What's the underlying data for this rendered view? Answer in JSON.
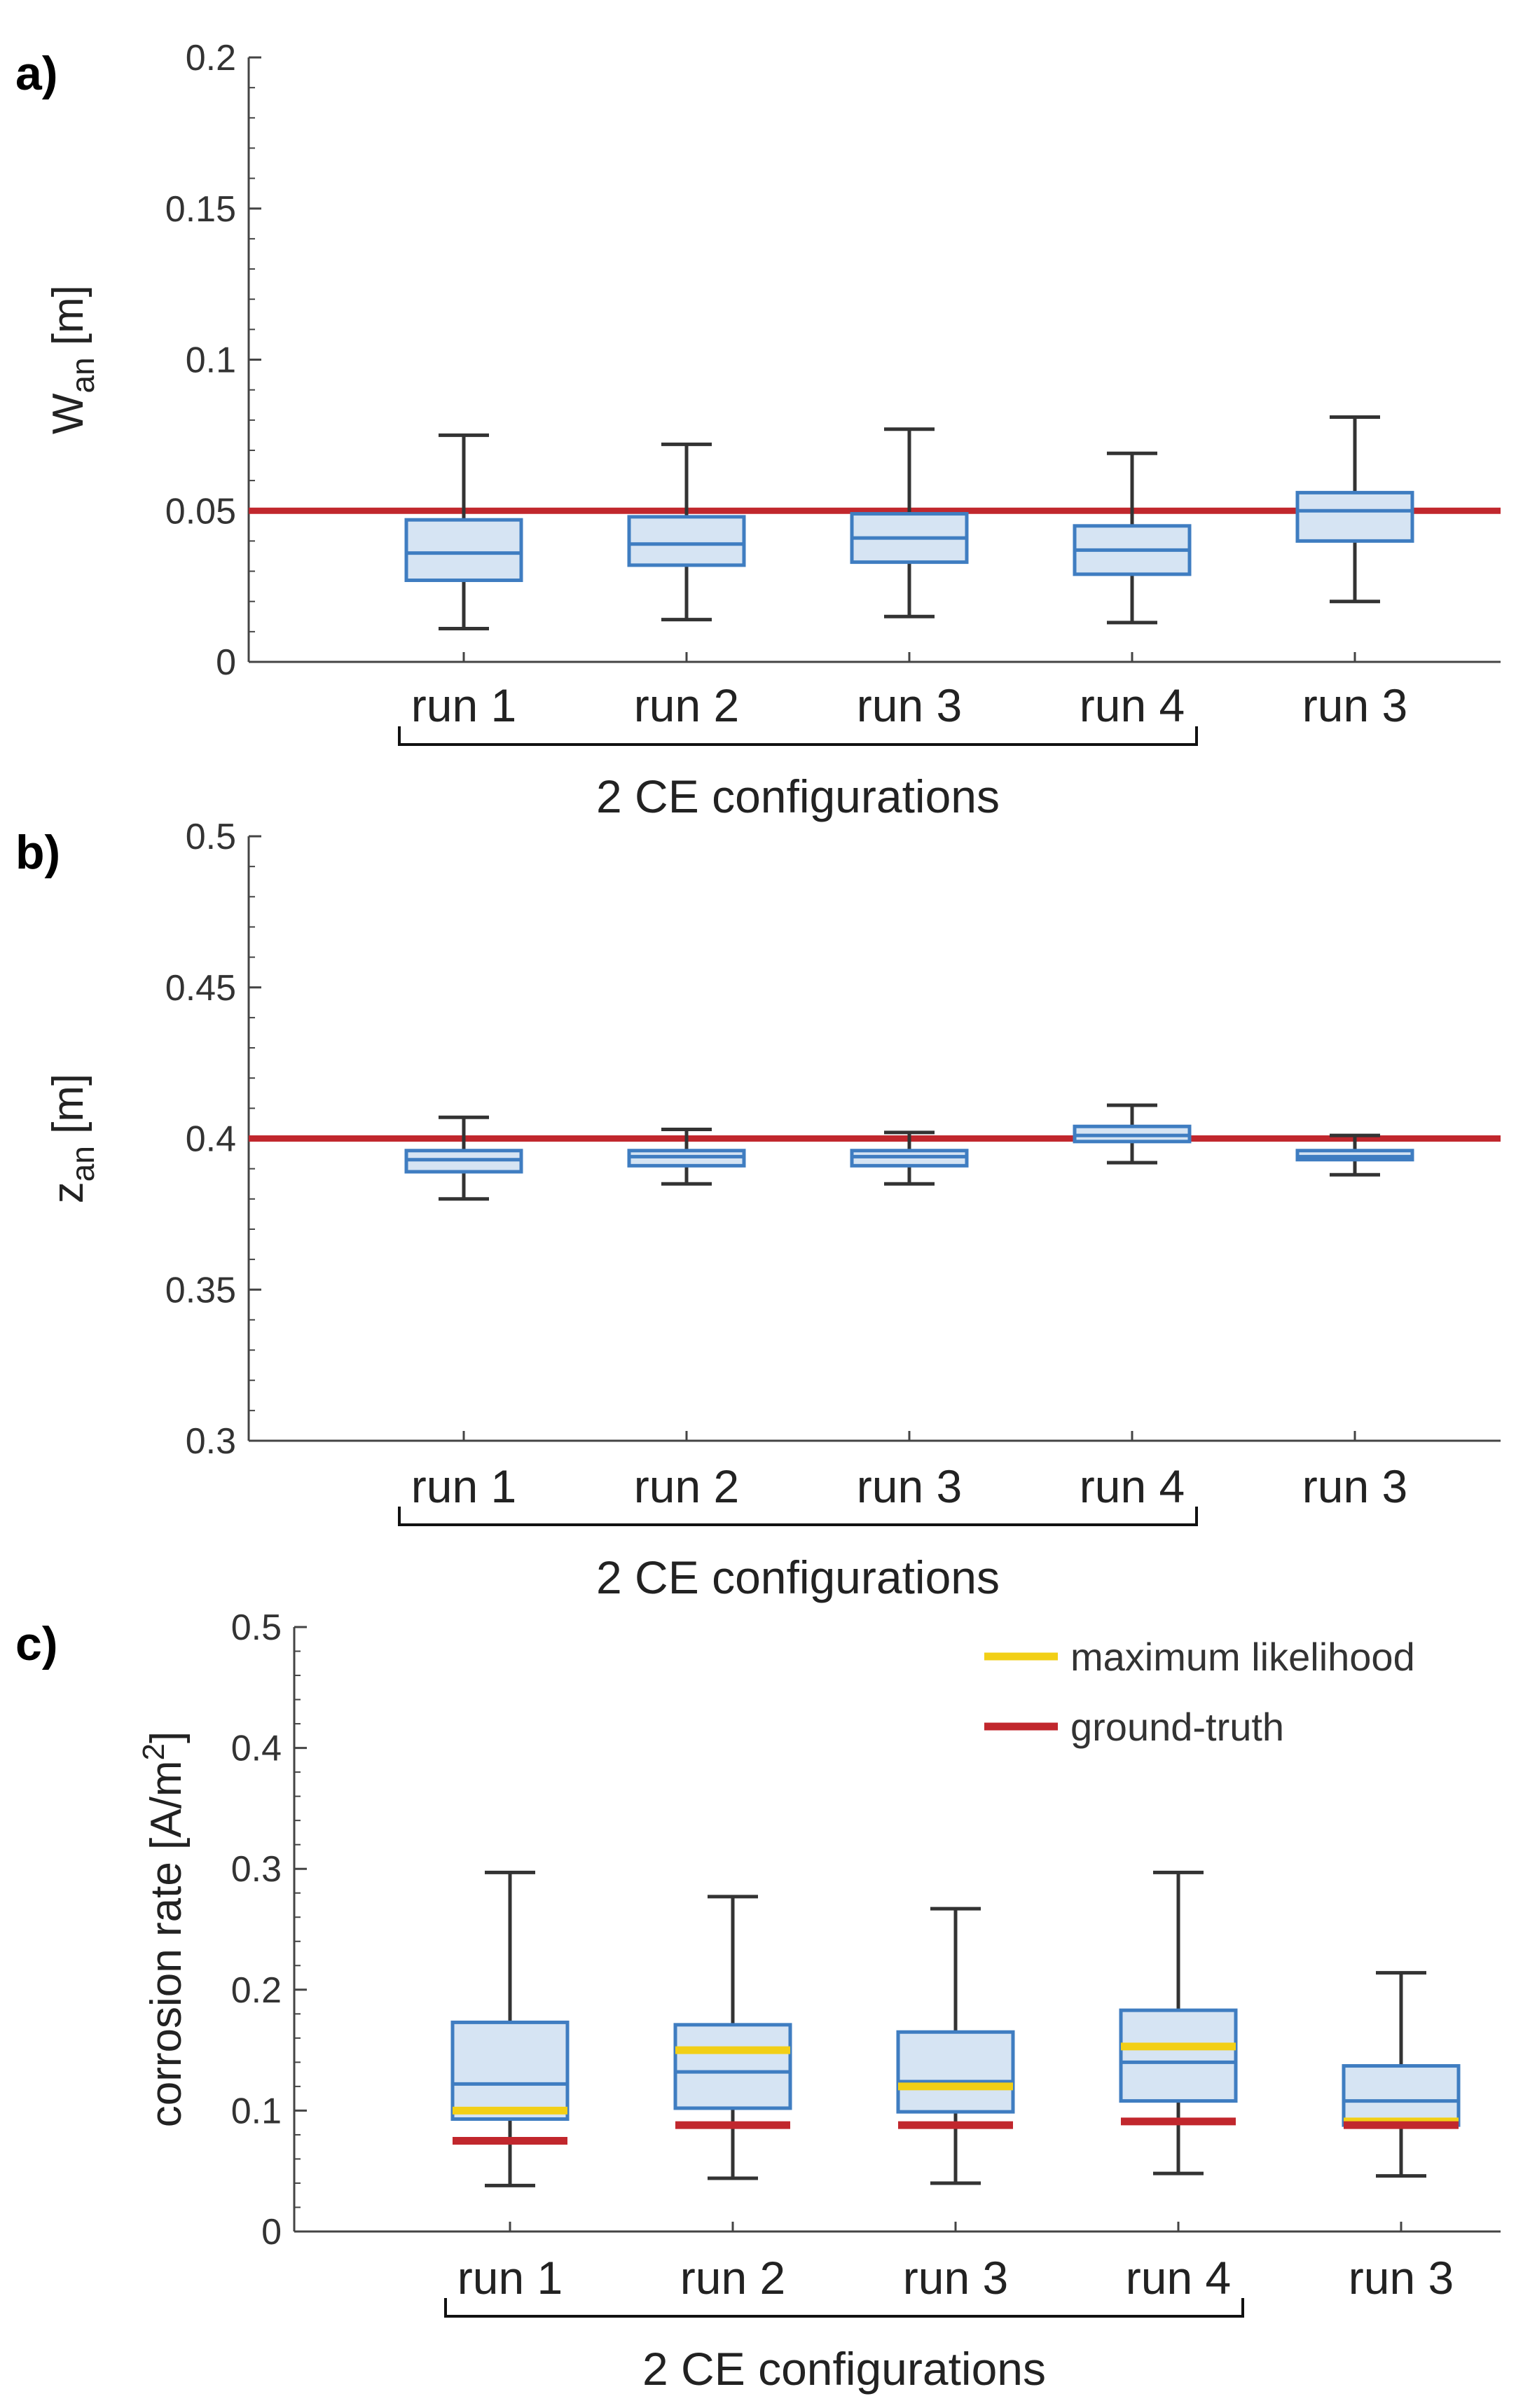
{
  "colors": {
    "box_fill": "#d6e4f3",
    "box_edge": "#3f7dc1",
    "median": "#3f7dc1",
    "whisker": "#333333",
    "ground_truth": "#c1272d",
    "max_likelihood": "#f2cf16"
  },
  "chart_data": [
    {
      "panel": "a)",
      "type": "box",
      "ylabel_main": "W",
      "ylabel_sub": "an",
      "ylabel_unit": " [m]",
      "ylim": [
        0,
        0.2
      ],
      "yticks": [
        0,
        0.05,
        0.1,
        0.15,
        0.2
      ],
      "ytick_labels": [
        "0",
        "0.05",
        "0.1",
        "0.15",
        "0.2"
      ],
      "categories": [
        "run 1",
        "run 2",
        "run 3",
        "run 4",
        "run 3"
      ],
      "group_label": "2 CE configurations",
      "group_span": [
        0,
        3
      ],
      "reference_line": 0.05,
      "boxes": [
        {
          "whisker_low": 0.011,
          "q1": 0.027,
          "median": 0.036,
          "q3": 0.047,
          "whisker_high": 0.075
        },
        {
          "whisker_low": 0.014,
          "q1": 0.032,
          "median": 0.039,
          "q3": 0.048,
          "whisker_high": 0.072
        },
        {
          "whisker_low": 0.015,
          "q1": 0.033,
          "median": 0.041,
          "q3": 0.049,
          "whisker_high": 0.077
        },
        {
          "whisker_low": 0.013,
          "q1": 0.029,
          "median": 0.037,
          "q3": 0.045,
          "whisker_high": 0.069
        },
        {
          "whisker_low": 0.02,
          "q1": 0.04,
          "median": 0.05,
          "q3": 0.056,
          "whisker_high": 0.081
        }
      ]
    },
    {
      "panel": "b)",
      "type": "box",
      "ylabel_main": "z",
      "ylabel_sub": "an",
      "ylabel_unit": " [m]",
      "ylim": [
        0.3,
        0.5
      ],
      "yticks": [
        0.3,
        0.35,
        0.4,
        0.45,
        0.5
      ],
      "ytick_labels": [
        "0.3",
        "0.35",
        "0.4",
        "0.45",
        "0.5"
      ],
      "categories": [
        "run 1",
        "run 2",
        "run 3",
        "run 4",
        "run 3"
      ],
      "group_label": "2 CE configurations",
      "group_span": [
        0,
        3
      ],
      "reference_line": 0.4,
      "boxes": [
        {
          "whisker_low": 0.38,
          "q1": 0.389,
          "median": 0.393,
          "q3": 0.396,
          "whisker_high": 0.407
        },
        {
          "whisker_low": 0.385,
          "q1": 0.391,
          "median": 0.394,
          "q3": 0.396,
          "whisker_high": 0.403
        },
        {
          "whisker_low": 0.385,
          "q1": 0.391,
          "median": 0.394,
          "q3": 0.396,
          "whisker_high": 0.402
        },
        {
          "whisker_low": 0.392,
          "q1": 0.399,
          "median": 0.401,
          "q3": 0.404,
          "whisker_high": 0.411
        },
        {
          "whisker_low": 0.388,
          "q1": 0.393,
          "median": 0.394,
          "q3": 0.396,
          "whisker_high": 0.401
        }
      ]
    },
    {
      "panel": "c)",
      "type": "box",
      "ylabel_main": "corrosion rate [A/m",
      "ylabel_sup": "2",
      "ylabel_unit": "]",
      "ylim": [
        0,
        0.5
      ],
      "yticks": [
        0,
        0.1,
        0.2,
        0.3,
        0.4,
        0.5
      ],
      "ytick_labels": [
        "0",
        "0.1",
        "0.2",
        "0.3",
        "0.4",
        "0.5"
      ],
      "categories": [
        "run 1",
        "run 2",
        "run 3",
        "run 4",
        "run 3"
      ],
      "group_label": "2 CE configurations",
      "group_span": [
        0,
        3
      ],
      "legend": {
        "position": "top-right",
        "entries": [
          {
            "label": "maximum likelihood",
            "color_key": "max_likelihood"
          },
          {
            "label": "ground-truth",
            "color_key": "ground_truth"
          }
        ]
      },
      "boxes": [
        {
          "whisker_low": 0.038,
          "q1": 0.093,
          "median": 0.122,
          "q3": 0.173,
          "whisker_high": 0.297,
          "max_likelihood": 0.1,
          "ground_truth": 0.075
        },
        {
          "whisker_low": 0.044,
          "q1": 0.102,
          "median": 0.132,
          "q3": 0.171,
          "whisker_high": 0.277,
          "max_likelihood": 0.15,
          "ground_truth": 0.088
        },
        {
          "whisker_low": 0.04,
          "q1": 0.099,
          "median": 0.124,
          "q3": 0.165,
          "whisker_high": 0.267,
          "max_likelihood": 0.12,
          "ground_truth": 0.088
        },
        {
          "whisker_low": 0.048,
          "q1": 0.108,
          "median": 0.14,
          "q3": 0.183,
          "whisker_high": 0.297,
          "max_likelihood": 0.153,
          "ground_truth": 0.091
        },
        {
          "whisker_low": 0.046,
          "q1": 0.088,
          "median": 0.108,
          "q3": 0.137,
          "whisker_high": 0.214,
          "max_likelihood": 0.091,
          "ground_truth": 0.088
        }
      ]
    }
  ]
}
